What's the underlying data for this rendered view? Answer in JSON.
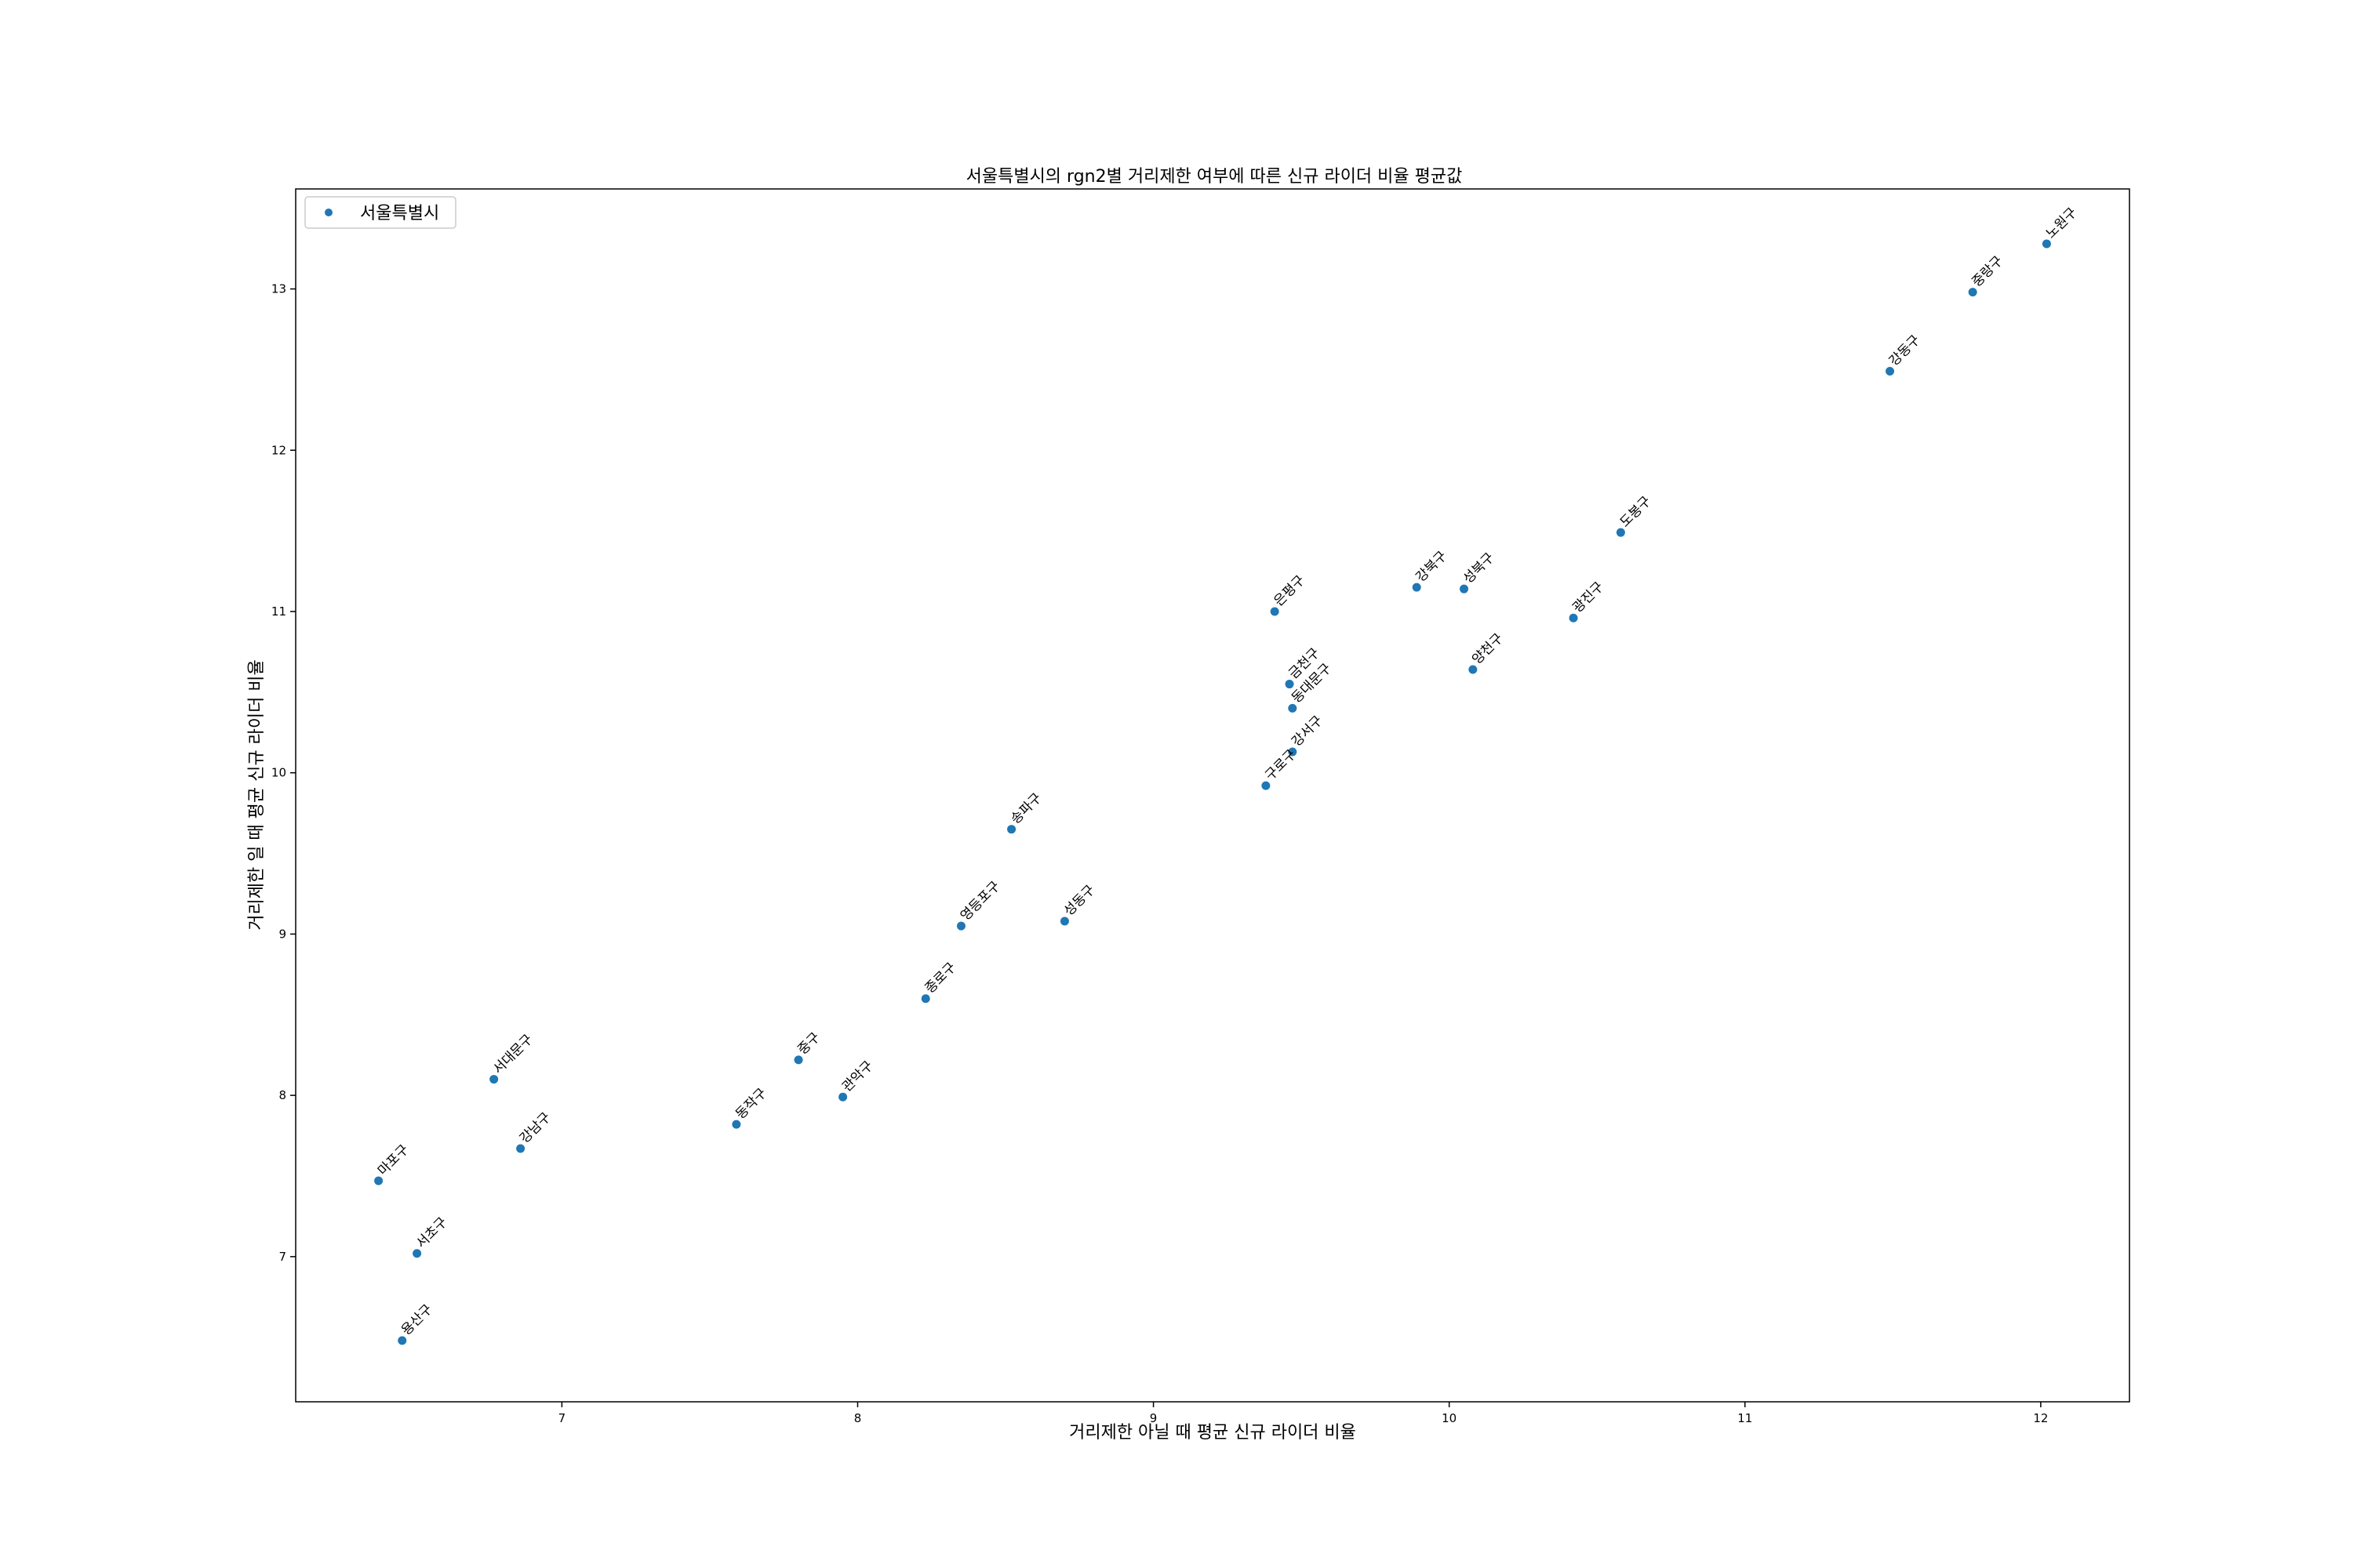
{
  "chart_data": {
    "type": "scatter",
    "title": "서울특별시의 rgn2별 거리제한 여부에 따른 신규 라이더 비율 평균값",
    "xlabel": "거리제한 아닐 때 평균 신규 라이더 비율",
    "ylabel": "거리제한 일 때 평균 신규 라이더 비율",
    "xlim": [
      6.1,
      12.3
    ],
    "ylim": [
      6.1,
      13.62
    ],
    "xticks": [
      7,
      8,
      9,
      10,
      11,
      12
    ],
    "yticks": [
      7,
      8,
      9,
      10,
      11,
      12,
      13
    ],
    "grid": false,
    "legend": {
      "position": "top-left",
      "entries": [
        "서울특별시"
      ]
    },
    "series": [
      {
        "name": "서울특별시",
        "color": "#1f77b4",
        "points": [
          {
            "label": "노원구",
            "x": 12.02,
            "y": 13.28
          },
          {
            "label": "중랑구",
            "x": 11.77,
            "y": 12.98
          },
          {
            "label": "강동구",
            "x": 11.49,
            "y": 12.49
          },
          {
            "label": "도봉구",
            "x": 10.58,
            "y": 11.49
          },
          {
            "label": "성북구",
            "x": 10.05,
            "y": 11.14
          },
          {
            "label": "강북구",
            "x": 9.89,
            "y": 11.15
          },
          {
            "label": "광진구",
            "x": 10.42,
            "y": 10.96
          },
          {
            "label": "은평구",
            "x": 9.41,
            "y": 11.0
          },
          {
            "label": "양천구",
            "x": 10.08,
            "y": 10.64
          },
          {
            "label": "금천구",
            "x": 9.46,
            "y": 10.55
          },
          {
            "label": "동대문구",
            "x": 9.47,
            "y": 10.4
          },
          {
            "label": "강서구",
            "x": 9.47,
            "y": 10.13
          },
          {
            "label": "구로구",
            "x": 9.38,
            "y": 9.92
          },
          {
            "label": "송파구",
            "x": 8.52,
            "y": 9.65
          },
          {
            "label": "성동구",
            "x": 8.7,
            "y": 9.08
          },
          {
            "label": "영등포구",
            "x": 8.35,
            "y": 9.05
          },
          {
            "label": "종로구",
            "x": 8.23,
            "y": 8.6
          },
          {
            "label": "중구",
            "x": 7.8,
            "y": 8.22
          },
          {
            "label": "관악구",
            "x": 7.95,
            "y": 7.99
          },
          {
            "label": "동작구",
            "x": 7.59,
            "y": 7.82
          },
          {
            "label": "서대문구",
            "x": 6.77,
            "y": 8.1
          },
          {
            "label": "강남구",
            "x": 6.86,
            "y": 7.67
          },
          {
            "label": "마포구",
            "x": 6.38,
            "y": 7.47
          },
          {
            "label": "서초구",
            "x": 6.51,
            "y": 7.02
          },
          {
            "label": "용산구",
            "x": 6.46,
            "y": 6.48
          }
        ]
      }
    ]
  }
}
